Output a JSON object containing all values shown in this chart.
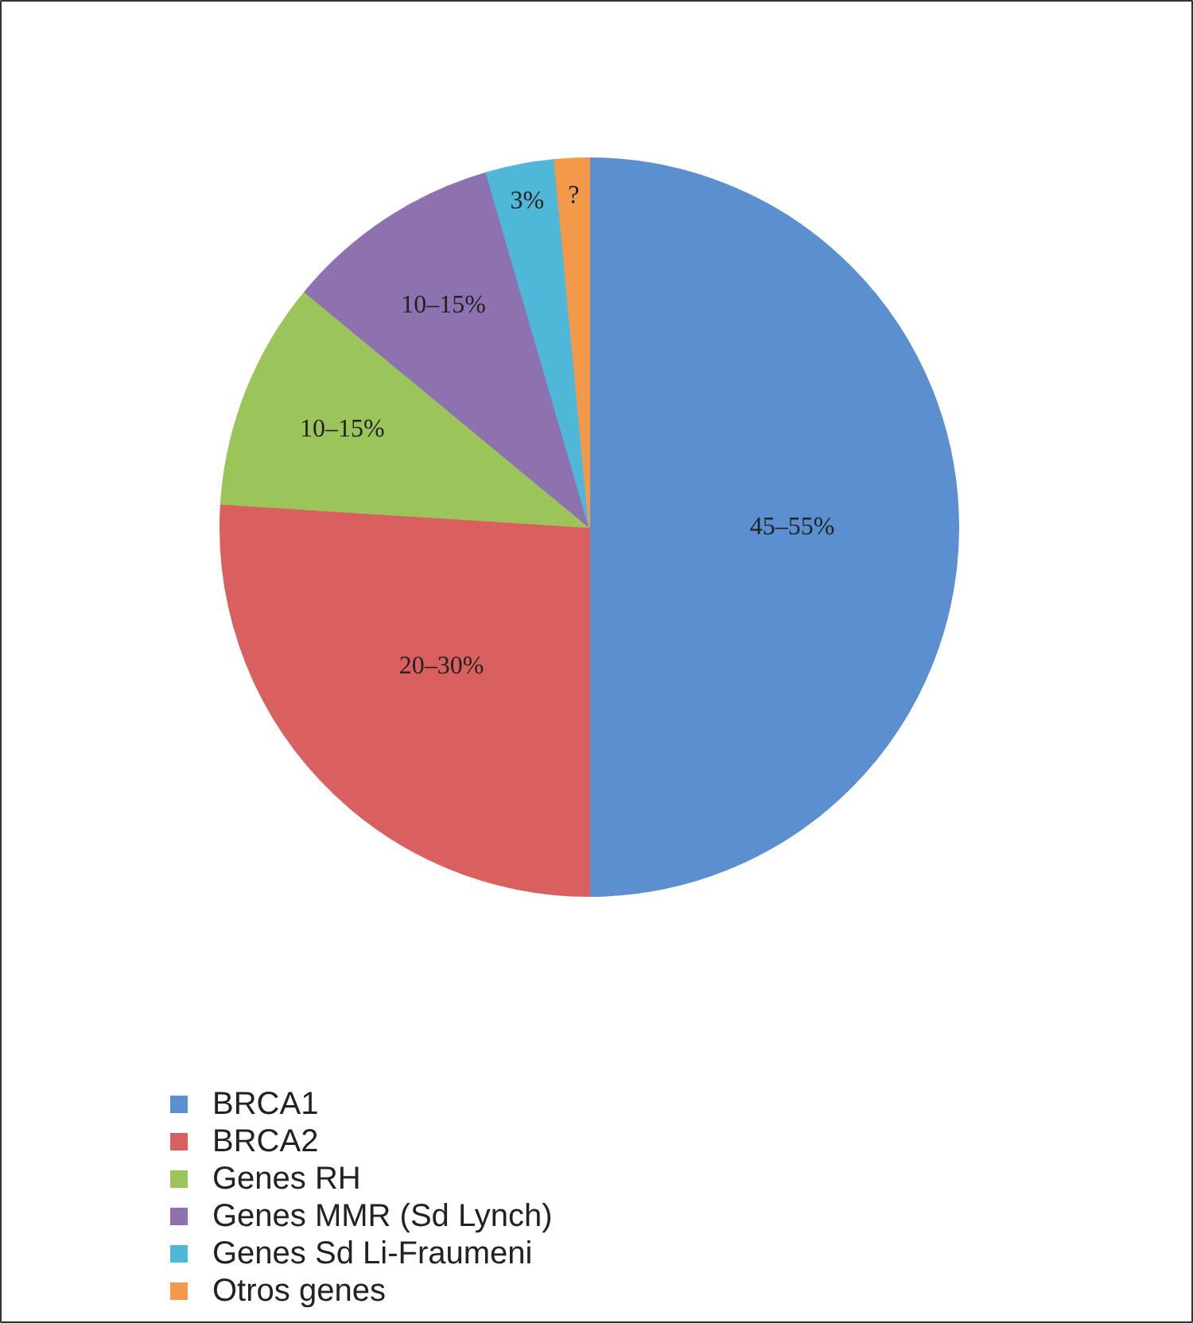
{
  "chart_data": {
    "type": "pie",
    "categories": [
      "BRCA1",
      "BRCA2",
      "Genes RH",
      "Genes MMR (Sd Lynch)",
      "Genes Sd Li-Fraumeni",
      "Otros genes"
    ],
    "values": [
      50,
      26,
      10,
      9.5,
      3,
      1.5
    ],
    "annotations": [
      "45–55%",
      "20–30%",
      "10–15%",
      "10–15%",
      "3%",
      "?"
    ],
    "colors": [
      "#5b8fd0",
      "#d9605e",
      "#9bc45a",
      "#8e72b0",
      "#4fb8d8",
      "#f29a4a"
    ],
    "legend": "bottom"
  }
}
